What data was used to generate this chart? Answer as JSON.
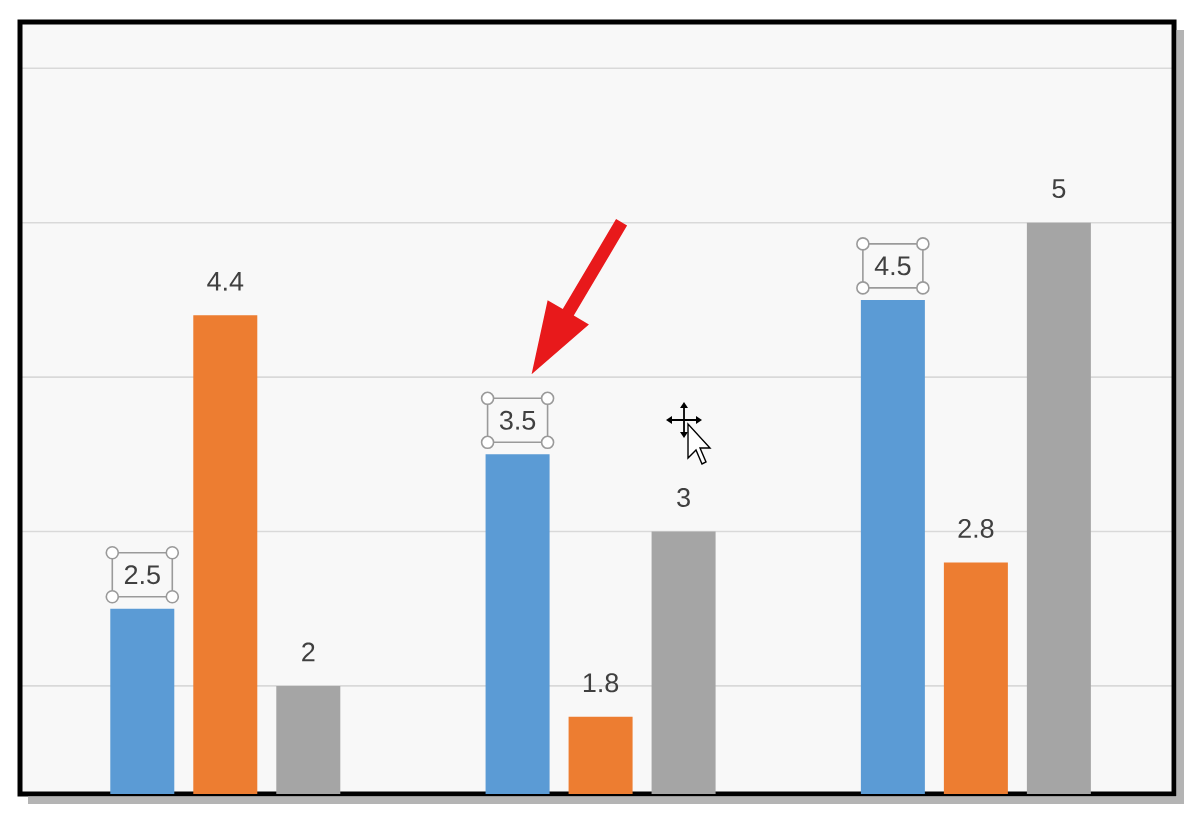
{
  "chart_data": {
    "type": "bar",
    "categories": [
      null,
      null,
      null
    ],
    "series": [
      {
        "color": "#5b9bd5",
        "values": [
          2.5,
          3.5,
          4.5
        ]
      },
      {
        "color": "#ed7d31",
        "values": [
          4.4,
          1.8,
          2.8
        ]
      },
      {
        "color": "#a5a5a5",
        "values": [
          2,
          3,
          5
        ]
      }
    ],
    "ylim": [
      1.3,
      6.3
    ],
    "yticks": [
      {
        "value": 2,
        "label": null
      },
      {
        "value": 3,
        "label": null
      },
      {
        "value": 4,
        "label": null
      },
      {
        "value": 5,
        "label": null
      },
      {
        "value": 6,
        "label": null
      }
    ],
    "grid": "y",
    "data_labels": true
  }
}
